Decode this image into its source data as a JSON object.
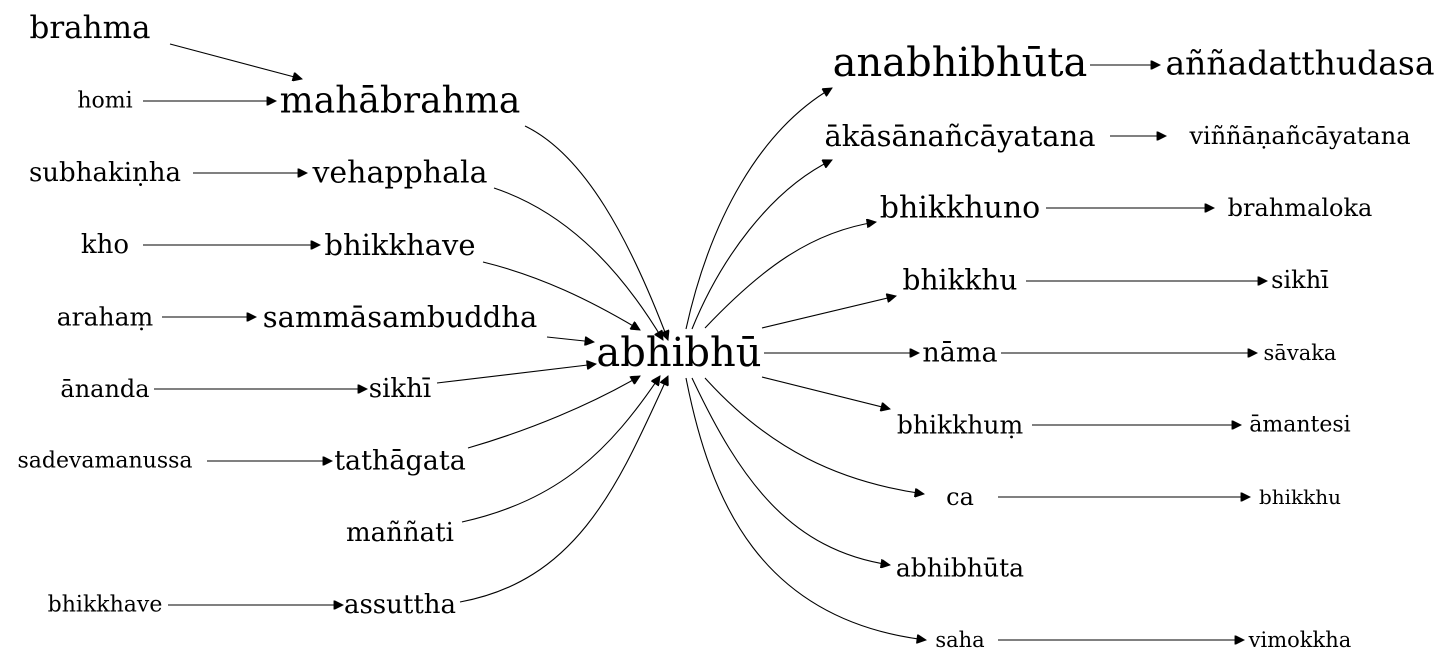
{
  "graph": {
    "center": {
      "id": "abhibhu",
      "label": "abhibhū"
    },
    "left_nodes": [
      {
        "id": "brahma",
        "label": "brahma"
      },
      {
        "id": "mahabrahma",
        "label": "mahābrahma"
      },
      {
        "id": "homi",
        "label": "homi"
      },
      {
        "id": "subhakinha",
        "label": "subhakiṇha"
      },
      {
        "id": "vehapphala",
        "label": "vehapphala"
      },
      {
        "id": "kho",
        "label": "kho"
      },
      {
        "id": "bhikkhave_mid",
        "label": "bhikkhave"
      },
      {
        "id": "araham",
        "label": "arahaṃ"
      },
      {
        "id": "sammasambuddha",
        "label": "sammāsambuddha"
      },
      {
        "id": "ananda",
        "label": "ānanda"
      },
      {
        "id": "sikhi_left",
        "label": "sikhī"
      },
      {
        "id": "sadevamanussa",
        "label": "sadevamanussa"
      },
      {
        "id": "tathagata",
        "label": "tathāgata"
      },
      {
        "id": "mannati",
        "label": "maññati"
      },
      {
        "id": "bhikkhave_left",
        "label": "bhikkhave"
      },
      {
        "id": "assuttha",
        "label": "assuttha"
      }
    ],
    "right_nodes": [
      {
        "id": "anabhibhuta",
        "label": "anabhibhūta"
      },
      {
        "id": "annadatthudasa",
        "label": "aññadatthudasa"
      },
      {
        "id": "akasananca",
        "label": "ākāsānañcāyatana"
      },
      {
        "id": "vinnananca",
        "label": "viññāṇañcāyatana"
      },
      {
        "id": "bhikkhuno",
        "label": "bhikkhuno"
      },
      {
        "id": "brahmaloka",
        "label": "brahmaloka"
      },
      {
        "id": "bhikkhu_mid",
        "label": "bhikkhu"
      },
      {
        "id": "sikhi_right",
        "label": "sikhī"
      },
      {
        "id": "nama",
        "label": "nāma"
      },
      {
        "id": "savaka",
        "label": "sāvaka"
      },
      {
        "id": "bhikkhum",
        "label": "bhikkhuṃ"
      },
      {
        "id": "amantesi",
        "label": "āmantesi"
      },
      {
        "id": "ca",
        "label": "ca"
      },
      {
        "id": "bhikkhu_right",
        "label": "bhikkhu"
      },
      {
        "id": "abhibhuta",
        "label": "abhibhūta"
      },
      {
        "id": "saha",
        "label": "saha"
      },
      {
        "id": "vimokkha",
        "label": "vimokkha"
      }
    ],
    "edges": [
      {
        "from": "brahma",
        "to": "mahabrahma"
      },
      {
        "from": "homi",
        "to": "mahabrahma"
      },
      {
        "from": "subhakinha",
        "to": "vehapphala"
      },
      {
        "from": "kho",
        "to": "bhikkhave_mid"
      },
      {
        "from": "araham",
        "to": "sammasambuddha"
      },
      {
        "from": "ananda",
        "to": "sikhi_left"
      },
      {
        "from": "sadevamanussa",
        "to": "tathagata"
      },
      {
        "from": "bhikkhave_left",
        "to": "assuttha"
      },
      {
        "from": "mahabrahma",
        "to": "abhibhu"
      },
      {
        "from": "vehapphala",
        "to": "abhibhu"
      },
      {
        "from": "bhikkhave_mid",
        "to": "abhibhu"
      },
      {
        "from": "sammasambuddha",
        "to": "abhibhu"
      },
      {
        "from": "sikhi_left",
        "to": "abhibhu"
      },
      {
        "from": "tathagata",
        "to": "abhibhu"
      },
      {
        "from": "mannati",
        "to": "abhibhu"
      },
      {
        "from": "assuttha",
        "to": "abhibhu"
      },
      {
        "from": "abhibhu",
        "to": "anabhibhuta"
      },
      {
        "from": "abhibhu",
        "to": "akasananca"
      },
      {
        "from": "abhibhu",
        "to": "bhikkhuno"
      },
      {
        "from": "abhibhu",
        "to": "bhikkhu_mid"
      },
      {
        "from": "abhibhu",
        "to": "nama"
      },
      {
        "from": "abhibhu",
        "to": "bhikkhum"
      },
      {
        "from": "abhibhu",
        "to": "ca"
      },
      {
        "from": "abhibhu",
        "to": "abhibhuta"
      },
      {
        "from": "abhibhu",
        "to": "saha"
      },
      {
        "from": "anabhibhuta",
        "to": "annadatthudasa"
      },
      {
        "from": "akasananca",
        "to": "vinnananca"
      },
      {
        "from": "bhikkhuno",
        "to": "brahmaloka"
      },
      {
        "from": "bhikkhu_mid",
        "to": "sikhi_right"
      },
      {
        "from": "nama",
        "to": "savaka"
      },
      {
        "from": "bhikkhum",
        "to": "amantesi"
      },
      {
        "from": "ca",
        "to": "bhikkhu_right"
      },
      {
        "from": "saha",
        "to": "vimokkha"
      }
    ]
  }
}
